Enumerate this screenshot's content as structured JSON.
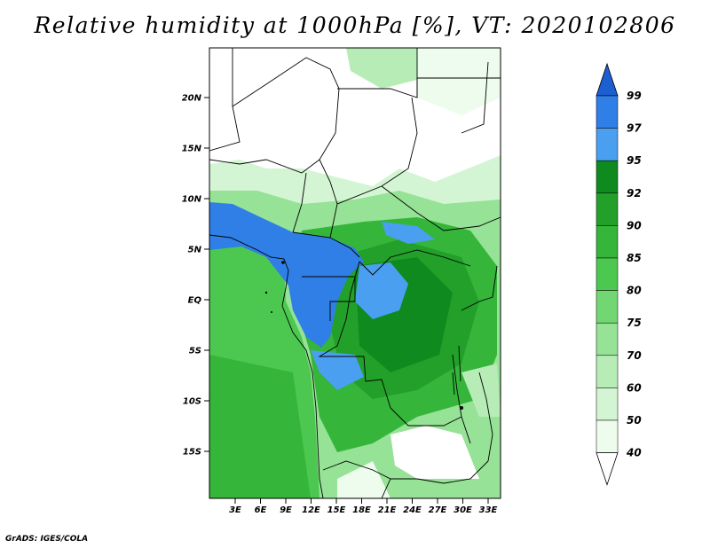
{
  "title": "Relative humidity at 1000hPa [%], VT: 2020102806",
  "credit": "GrADS: IGES/COLA",
  "lat_ticks": [
    "20N",
    "15N",
    "10N",
    "5N",
    "EQ",
    "5S",
    "10S",
    "15S"
  ],
  "lon_ticks": [
    "3E",
    "6E",
    "9E",
    "12E",
    "15E",
    "18E",
    "21E",
    "24E",
    "27E",
    "30E",
    "33E"
  ],
  "colorbar": {
    "levels": [
      "99",
      "97",
      "95",
      "92",
      "90",
      "85",
      "80",
      "75",
      "70",
      "60",
      "50",
      "40"
    ],
    "colors": [
      "#1c5fd0",
      "#2f7fe6",
      "#4a9ff0",
      "#0f8a1e",
      "#23a02a",
      "#35b53a",
      "#4cc850",
      "#72d772",
      "#96e296",
      "#b7ecb7",
      "#d4f5d4",
      "#edfced",
      "#ffffff"
    ]
  },
  "map": {
    "ocean_color": "#4cc850",
    "dry_color": "#ffffff",
    "humid_color": "#2f7fe6",
    "forest_color": "#23a02a"
  }
}
